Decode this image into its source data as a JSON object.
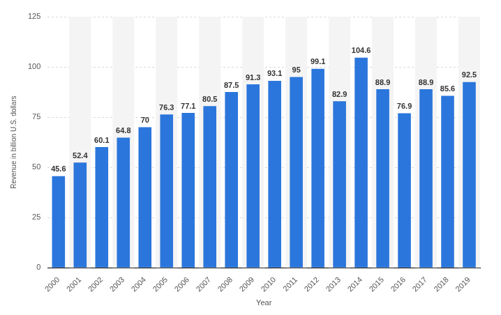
{
  "chart_data": {
    "type": "bar",
    "x_label": "Year",
    "y_label": "Revenue in billion U.S. dollars",
    "categories": [
      "2000",
      "2001",
      "2002",
      "2003",
      "2004",
      "2005",
      "2006",
      "2007",
      "2008",
      "2009",
      "2010",
      "2011",
      "2012",
      "2013",
      "2014",
      "2015",
      "2016",
      "2017",
      "2018",
      "2019"
    ],
    "values": [
      45.6,
      52.4,
      60.1,
      64.8,
      70,
      76.3,
      77.1,
      80.5,
      87.5,
      91.3,
      93.1,
      95,
      99.1,
      82.9,
      104.6,
      88.9,
      76.9,
      88.9,
      85.6,
      92.5
    ],
    "color": "#2b76dc",
    "ylim": [
      0,
      125
    ],
    "yticks": [
      0,
      25,
      50,
      75,
      100,
      125
    ],
    "grid": true,
    "data_labels": true
  }
}
